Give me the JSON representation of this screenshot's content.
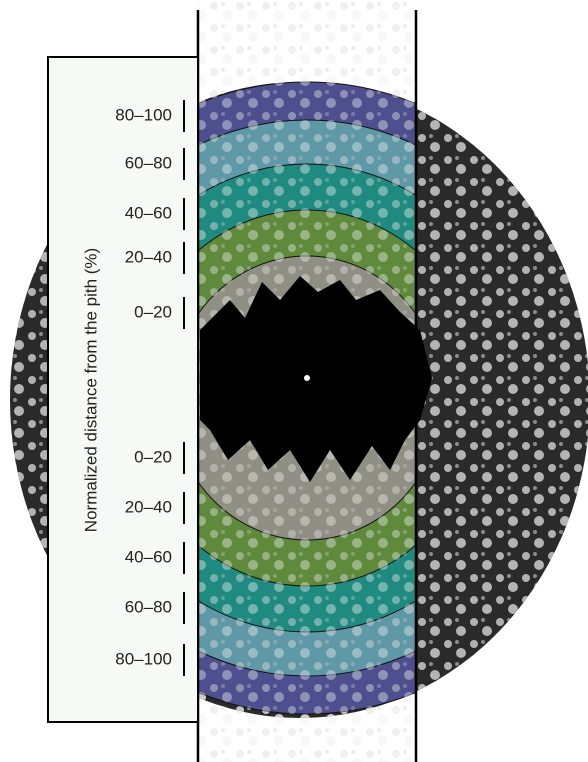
{
  "axis_label": "Normalized distance from the pith (%)",
  "upper_bands": [
    "80–100",
    "60–80",
    "40–60",
    "20–40",
    "0–20"
  ],
  "lower_bands": [
    "0–20",
    "20–40",
    "40–60",
    "60–80",
    "80–100"
  ]
}
